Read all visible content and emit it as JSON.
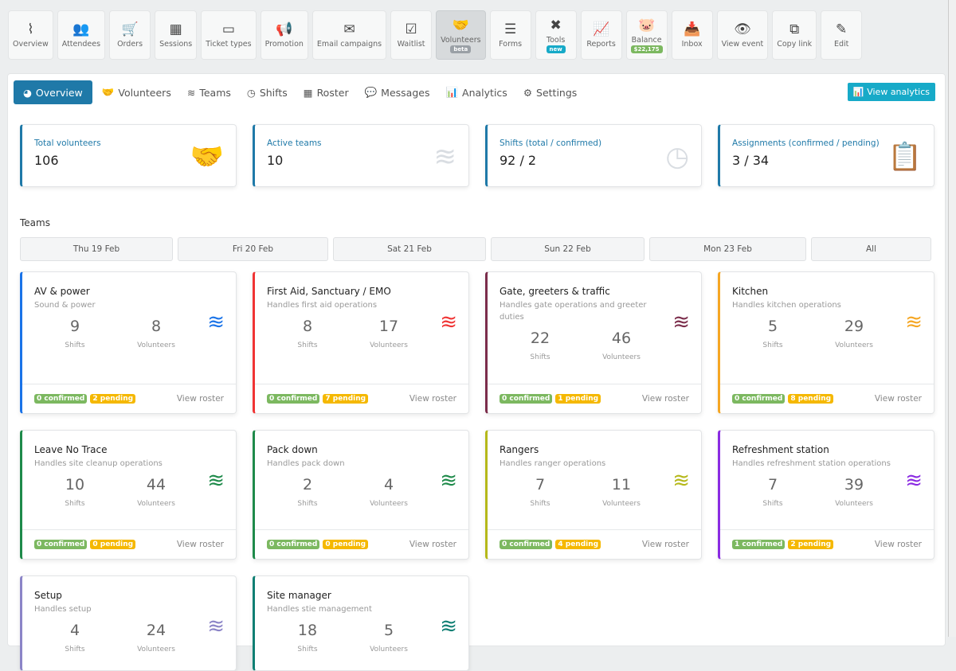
{
  "topnav": [
    {
      "label": "Overview",
      "icon": "pulse-icon",
      "glyph": "⌇"
    },
    {
      "label": "Attendees",
      "icon": "users-icon",
      "glyph": "👥"
    },
    {
      "label": "Orders",
      "icon": "cart-icon",
      "glyph": "🛒"
    },
    {
      "label": "Sessions",
      "icon": "calendar-icon",
      "glyph": "▦"
    },
    {
      "label": "Ticket types",
      "icon": "ticket-icon",
      "glyph": "▭"
    },
    {
      "label": "Promotion",
      "icon": "megaphone-icon",
      "glyph": "📢"
    },
    {
      "label": "Email campaigns",
      "icon": "envelope-icon",
      "glyph": "✉"
    },
    {
      "label": "Waitlist",
      "icon": "clipboard-check-icon",
      "glyph": "☑"
    },
    {
      "label": "Volunteers",
      "icon": "handshake-icon",
      "glyph": "🤝",
      "badge": "beta",
      "active": true
    },
    {
      "label": "Forms",
      "icon": "list-icon",
      "glyph": "☰"
    },
    {
      "label": "Tools",
      "icon": "tools-icon",
      "glyph": "✖",
      "badge": "new"
    },
    {
      "label": "Reports",
      "icon": "chart-line-icon",
      "glyph": "📈"
    },
    {
      "label": "Balance",
      "icon": "piggy-bank-icon",
      "glyph": "🐷",
      "badge": "$22,175"
    },
    {
      "label": "Inbox",
      "icon": "inbox-icon",
      "glyph": "📥"
    },
    {
      "label": "View event",
      "icon": "eye-icon",
      "glyph": "👁"
    },
    {
      "label": "Copy link",
      "icon": "copy-icon",
      "glyph": "⧉"
    },
    {
      "label": "Edit",
      "icon": "pencil-icon",
      "glyph": "✎"
    }
  ],
  "badge_colors": {
    "beta": "#9aa0a6",
    "new": "#17aac8",
    "$22,175": "#7cb860"
  },
  "tabs": [
    {
      "label": "Overview",
      "icon": "pie-chart-icon",
      "glyph": "◕",
      "active": true
    },
    {
      "label": "Volunteers",
      "icon": "handshake-icon",
      "glyph": "🤝"
    },
    {
      "label": "Teams",
      "icon": "layers-icon",
      "glyph": "≋"
    },
    {
      "label": "Shifts",
      "icon": "clock-icon",
      "glyph": "◷"
    },
    {
      "label": "Roster",
      "icon": "calendar-icon",
      "glyph": "▦"
    },
    {
      "label": "Messages",
      "icon": "comments-icon",
      "glyph": "💬"
    },
    {
      "label": "Analytics",
      "icon": "bar-chart-icon",
      "glyph": "📊"
    },
    {
      "label": "Settings",
      "icon": "cogs-icon",
      "glyph": "⚙"
    }
  ],
  "view_analytics": "View analytics",
  "stats": [
    {
      "label": "Total volunteers",
      "value": "106",
      "icon": "handshake-icon",
      "glyph": "🤝"
    },
    {
      "label": "Active teams",
      "value": "10",
      "icon": "layers-icon",
      "glyph": "≋"
    },
    {
      "label": "Shifts (total / confirmed)",
      "value": "92 / 2",
      "icon": "clock-icon",
      "glyph": "◷"
    },
    {
      "label": "Assignments (confirmed / pending)",
      "value": "3 / 34",
      "icon": "clipboard-list-icon",
      "glyph": "📋"
    }
  ],
  "teams_label": "Teams",
  "dates": [
    "Thu 19 Feb",
    "Fri 20 Feb",
    "Sat 21 Feb",
    "Sun 22 Feb",
    "Mon 23 Feb",
    "All"
  ],
  "shifts_label": "Shifts",
  "volunteers_label": "Volunteers",
  "roster_label": "View roster",
  "teams": [
    {
      "name": "AV & power",
      "desc": "Sound & power",
      "shifts": "9",
      "volunteers": "8",
      "confirmed": "0 confirmed",
      "pending": "2 pending",
      "color": "#1a73e8"
    },
    {
      "name": "First Aid, Sanctuary / EMO",
      "desc": "Handles first aid operations",
      "shifts": "8",
      "volunteers": "17",
      "confirmed": "0 confirmed",
      "pending": "7 pending",
      "color": "#f03434"
    },
    {
      "name": "Gate, greeters & traffic",
      "desc": "Handles gate operations and greeter duties",
      "shifts": "22",
      "volunteers": "46",
      "confirmed": "0 confirmed",
      "pending": "1 pending",
      "color": "#7b2d4b"
    },
    {
      "name": "Kitchen",
      "desc": "Handles kitchen operations",
      "shifts": "5",
      "volunteers": "29",
      "confirmed": "0 confirmed",
      "pending": "8 pending",
      "color": "#f5a623"
    },
    {
      "name": "Leave No Trace",
      "desc": "Handles site cleanup operations",
      "shifts": "10",
      "volunteers": "44",
      "confirmed": "0 confirmed",
      "pending": "0 pending",
      "color": "#1e8a4a"
    },
    {
      "name": "Pack down",
      "desc": "Handles pack down",
      "shifts": "2",
      "volunteers": "4",
      "confirmed": "0 confirmed",
      "pending": "0 pending",
      "color": "#1e8a4a"
    },
    {
      "name": "Rangers",
      "desc": "Handles ranger operations",
      "shifts": "7",
      "volunteers": "11",
      "confirmed": "0 confirmed",
      "pending": "4 pending",
      "color": "#b5b81a"
    },
    {
      "name": "Refreshment station",
      "desc": "Handles refreshment station operations",
      "shifts": "7",
      "volunteers": "39",
      "confirmed": "1 confirmed",
      "pending": "2 pending",
      "color": "#8a2be2"
    },
    {
      "name": "Setup",
      "desc": "Handles setup",
      "shifts": "4",
      "volunteers": "24",
      "color": "#8b84c7"
    },
    {
      "name": "Site manager",
      "desc": "Handles stie management",
      "shifts": "18",
      "volunteers": "5",
      "color": "#0f7f73"
    }
  ]
}
